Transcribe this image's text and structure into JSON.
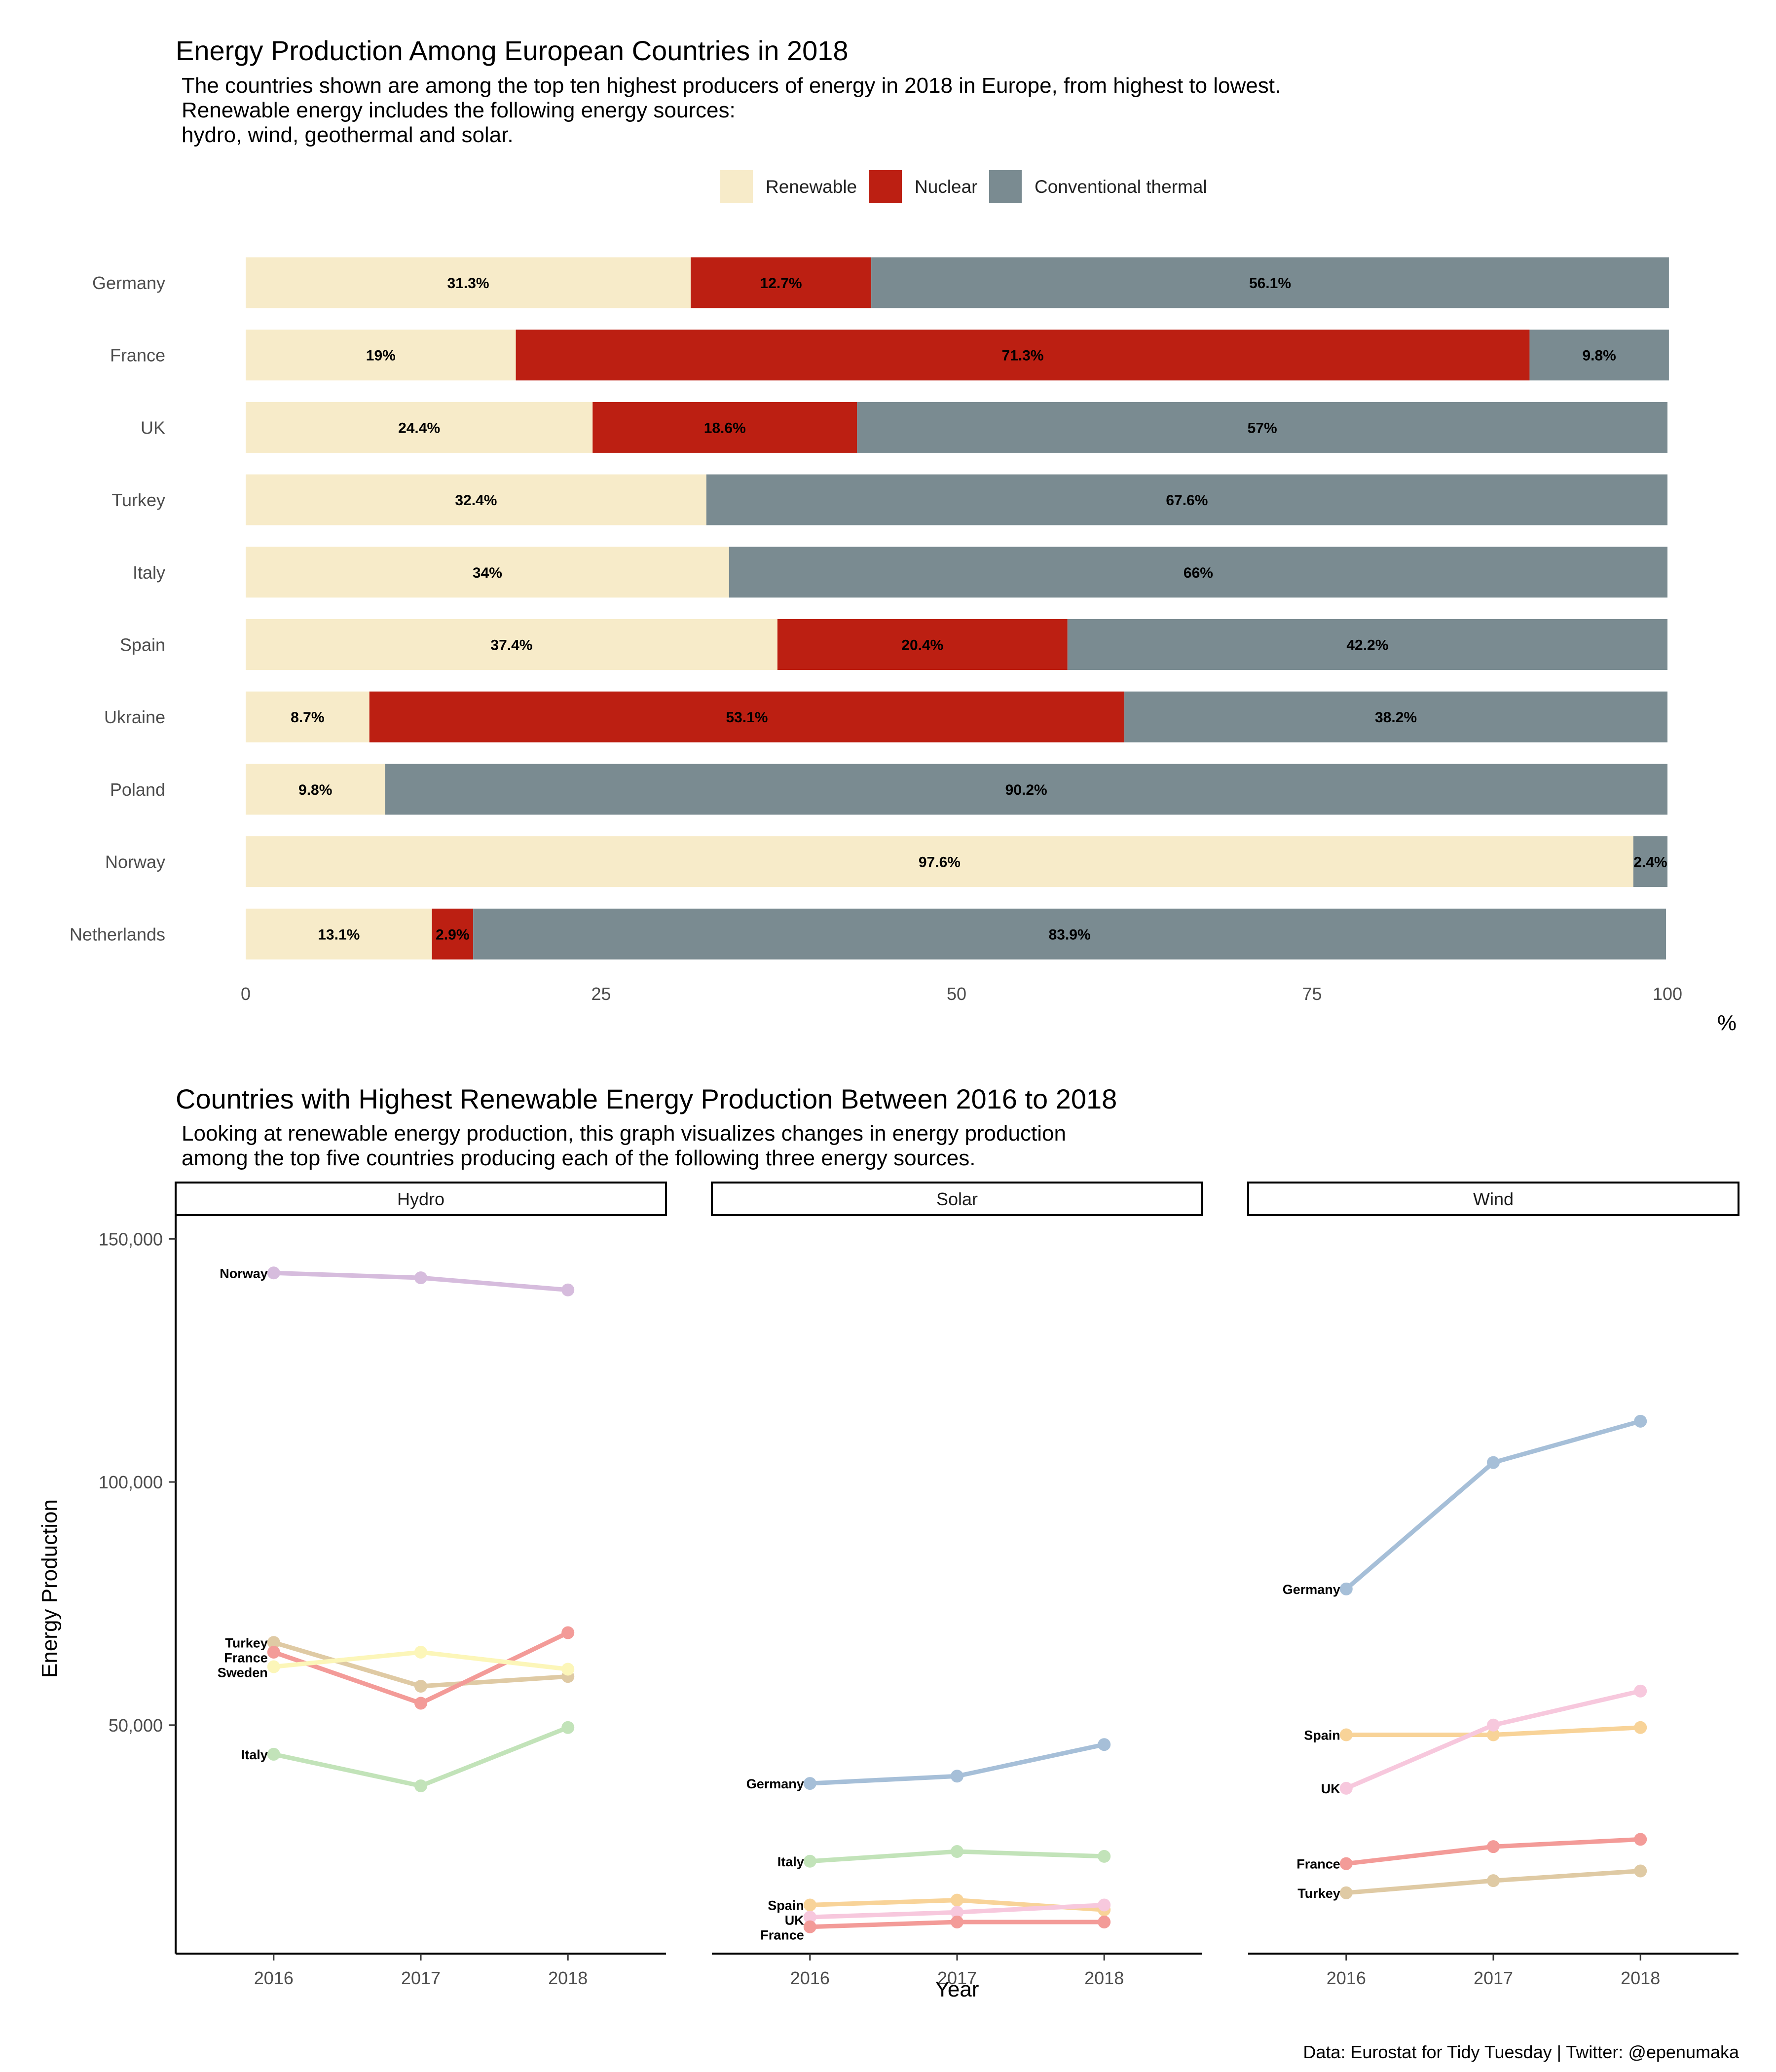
{
  "colors": {
    "renewable": "#f7ebc9",
    "nuclear": "#bc1f12",
    "conventional": "#7a8b91",
    "Norway": "#d6bcdd",
    "Turkey": "#dfcaa4",
    "France": "#f39b98",
    "Sweden": "#fcf6b9",
    "Italy": "#c2e3b9",
    "Germany": "#a6bfd8",
    "Spain": "#f8d398",
    "UK": "#f7c8dd"
  },
  "caption": "Data: Eurostat for Tidy Tuesday | Twitter: @epenumaka",
  "chart_data": [
    {
      "type": "bar",
      "orientation": "horizontal",
      "stacked": true,
      "title": "Energy Production Among European Countries in 2018",
      "subtitle": [
        "The countries shown are among the top ten highest producers of energy in 2018 in Europe, from highest to lowest.",
        "Renewable energy includes the following energy sources:",
        "hydro, wind, geothermal and solar."
      ],
      "xlabel": "%",
      "ylabel": "",
      "xlim": [
        0,
        100
      ],
      "xticks": [
        0,
        25,
        50,
        75,
        100
      ],
      "legend_position": "top",
      "grid": false,
      "categories": [
        "Germany",
        "France",
        "UK",
        "Turkey",
        "Italy",
        "Spain",
        "Ukraine",
        "Poland",
        "Norway",
        "Netherlands"
      ],
      "series": [
        {
          "name": "Renewable",
          "color_key": "renewable",
          "values": [
            31.3,
            19,
            24.4,
            32.4,
            34,
            37.4,
            8.7,
            9.8,
            97.6,
            13.1
          ],
          "labels": [
            "31.3%",
            "19%",
            "24.4%",
            "32.4%",
            "34%",
            "37.4%",
            "8.7%",
            "9.8%",
            "97.6%",
            "13.1%"
          ]
        },
        {
          "name": "Nuclear",
          "color_key": "nuclear",
          "values": [
            12.7,
            71.3,
            18.6,
            0,
            0,
            20.4,
            53.1,
            0,
            0,
            2.9
          ],
          "labels": [
            "12.7%",
            "71.3%",
            "18.6%",
            "",
            "",
            "20.4%",
            "53.1%",
            "",
            "",
            "2.9%"
          ]
        },
        {
          "name": "Conventional thermal",
          "color_key": "conventional",
          "values": [
            56.1,
            9.8,
            57,
            67.6,
            66,
            42.2,
            38.2,
            90.2,
            2.4,
            83.9
          ],
          "labels": [
            "56.1%",
            "9.8%",
            "57%",
            "67.6%",
            "66%",
            "42.2%",
            "38.2%",
            "90.2%",
            "2.4%",
            "83.9%"
          ]
        }
      ]
    },
    {
      "type": "line",
      "title": "Countries with Highest Renewable Energy Production Between 2016 to 2018",
      "subtitle": [
        "Looking at renewable energy production, this graph visualizes changes in energy production",
        "among the top five countries producing each of the following three energy sources."
      ],
      "xlabel": "Year",
      "ylabel": "Energy Production",
      "x": [
        2016,
        2017,
        2018
      ],
      "ylim": [
        3000,
        155000
      ],
      "yticks": [
        50000,
        100000,
        150000
      ],
      "ytick_labels": [
        "50,000",
        "100,000",
        "150,000"
      ],
      "grid": false,
      "legend_position": "none",
      "facets": [
        {
          "name": "Hydro",
          "series": [
            {
              "name": "Norway",
              "values": [
                143000,
                142000,
                139500
              ]
            },
            {
              "name": "Turkey",
              "values": [
                67000,
                58000,
                60000
              ]
            },
            {
              "name": "France",
              "values": [
                65000,
                54500,
                69000
              ]
            },
            {
              "name": "Sweden",
              "values": [
                62000,
                65000,
                61500
              ]
            },
            {
              "name": "Italy",
              "values": [
                44000,
                37500,
                49500
              ]
            }
          ]
        },
        {
          "name": "Solar",
          "series": [
            {
              "name": "Germany",
              "values": [
                38000,
                39500,
                46000
              ]
            },
            {
              "name": "Italy",
              "values": [
                22000,
                24000,
                23000
              ]
            },
            {
              "name": "Spain",
              "values": [
                13000,
                14000,
                12000
              ]
            },
            {
              "name": "UK",
              "values": [
                10500,
                11500,
                13000
              ]
            },
            {
              "name": "France",
              "values": [
                8500,
                9500,
                9500
              ]
            }
          ]
        },
        {
          "name": "Wind",
          "series": [
            {
              "name": "Germany",
              "values": [
                78000,
                104000,
                112500
              ]
            },
            {
              "name": "Spain",
              "values": [
                48000,
                48000,
                49500
              ]
            },
            {
              "name": "UK",
              "values": [
                37000,
                50000,
                57000
              ]
            },
            {
              "name": "France",
              "values": [
                21500,
                25000,
                26500
              ]
            },
            {
              "name": "Turkey",
              "values": [
                15500,
                18000,
                20000
              ]
            }
          ]
        }
      ]
    }
  ]
}
